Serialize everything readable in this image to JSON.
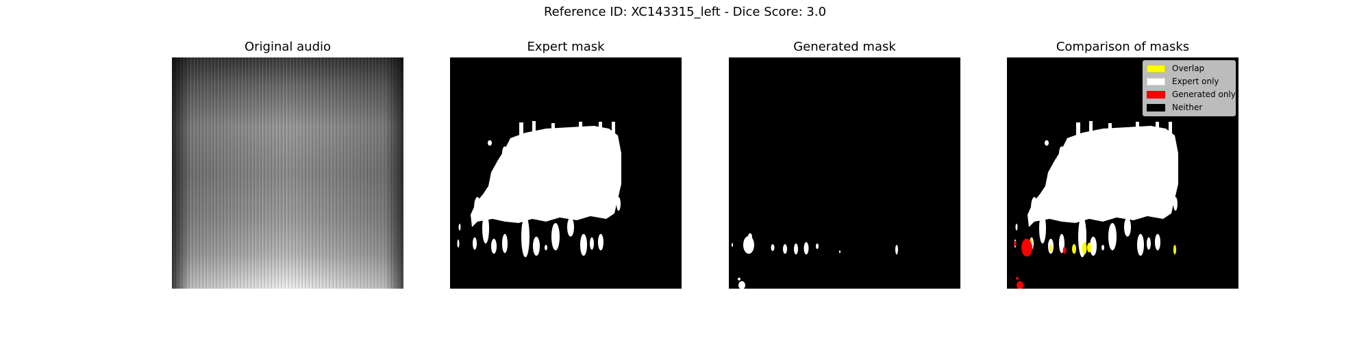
{
  "figure": {
    "suptitle": "Reference ID: XC143315_left - Dice Score: 3.0"
  },
  "panels": [
    {
      "id": "original",
      "title": "Original audio"
    },
    {
      "id": "expert",
      "title": "Expert mask"
    },
    {
      "id": "generated",
      "title": "Generated mask"
    },
    {
      "id": "comparison",
      "title": "Comparison of masks"
    }
  ],
  "legend": {
    "items": [
      {
        "label": "Overlap",
        "color": "#ffff00"
      },
      {
        "label": "Expert only",
        "color": "#ffffff"
      },
      {
        "label": "Generated only",
        "color": "#ff0000"
      },
      {
        "label": "Neither",
        "color": "#000000"
      }
    ]
  },
  "chart_data": [
    {
      "type": "heatmap",
      "title": "Original audio",
      "colormap": "gray",
      "axes": "off"
    },
    {
      "type": "heatmap",
      "title": "Expert mask",
      "values": "binary",
      "colors": {
        "1": "#ffffff",
        "0": "#000000"
      },
      "axes": "off"
    },
    {
      "type": "heatmap",
      "title": "Generated mask",
      "values": "binary",
      "colors": {
        "1": "#ffffff",
        "0": "#000000"
      },
      "axes": "off"
    },
    {
      "type": "heatmap",
      "title": "Comparison of masks",
      "categories": [
        "Overlap",
        "Expert only",
        "Generated only",
        "Neither"
      ],
      "colors": [
        "#ffff00",
        "#ffffff",
        "#ff0000",
        "#000000"
      ],
      "legend": "top-right",
      "axes": "off"
    }
  ]
}
